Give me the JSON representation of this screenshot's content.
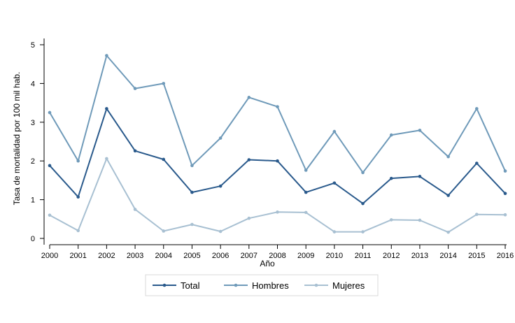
{
  "chart_data": {
    "type": "line",
    "xlabel": "Año",
    "ylabel": "Tasa de mortalidad por 100 mil hab.",
    "ylim": [
      0,
      5
    ],
    "yticks": [
      0,
      1,
      2,
      3,
      4,
      5
    ],
    "x": [
      2000,
      2001,
      2002,
      2003,
      2004,
      2005,
      2006,
      2007,
      2008,
      2009,
      2010,
      2011,
      2012,
      2013,
      2014,
      2015,
      2016
    ],
    "grid": false,
    "legend_position": "bottom",
    "series": [
      {
        "name": "Total",
        "color": "#2a5a8c",
        "values": [
          1.88,
          1.07,
          3.35,
          2.26,
          2.04,
          1.19,
          1.35,
          2.03,
          2.0,
          1.19,
          1.43,
          0.9,
          1.55,
          1.6,
          1.11,
          1.94,
          1.16
        ]
      },
      {
        "name": "Hombres",
        "color": "#6f9ab9",
        "values": [
          3.25,
          2.0,
          4.72,
          3.87,
          4.0,
          1.88,
          2.59,
          3.64,
          3.4,
          1.76,
          2.76,
          1.7,
          2.67,
          2.79,
          2.11,
          3.35,
          1.74
        ]
      },
      {
        "name": "Mujeres",
        "color": "#a8c0d2",
        "values": [
          0.6,
          0.2,
          2.06,
          0.75,
          0.19,
          0.36,
          0.18,
          0.52,
          0.68,
          0.67,
          0.17,
          0.17,
          0.48,
          0.47,
          0.16,
          0.62,
          0.61
        ]
      }
    ]
  }
}
